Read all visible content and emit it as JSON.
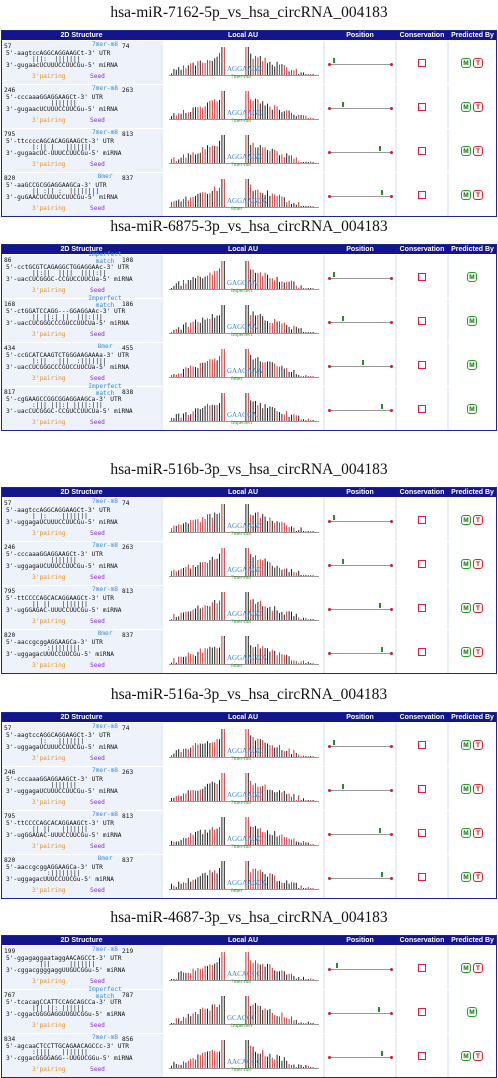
{
  "headers": [
    "2D Structure",
    "Local AU",
    "Position",
    "Conservation",
    "Predicted By"
  ],
  "sections": [
    {
      "title": "hsa-miR-7162-5p_vs_hsa_circRNA_004183",
      "rows": [
        {
          "start": "57",
          "end": "74",
          "type": "7mer-m8",
          "utr": "5'-aagtccAGGCAGGAAGCt-3' UTR",
          "bars": "|||:  ||||||| ",
          "mirna": "3'-gugaacUCUUUCCUUCGu-5' miRNA",
          "au": "AGGAAGC",
          "pos": 0.05,
          "pred": [
            "M",
            "T"
          ]
        },
        {
          "start": "246",
          "end": "263",
          "type": "7mer-m8",
          "utr": "5'-cccaaaGGAGGAAGCt-3' UTR",
          "bars": "     |||||||  ",
          "mirna": "3'-gugaacUCUUUCCUUCGu-5' miRNA",
          "au": "AGGAAGC",
          "pos": 0.2,
          "pred": [
            "M",
            "T"
          ]
        },
        {
          "start": "795",
          "end": "813",
          "type": "7mer-m8",
          "utr": "5'-ttccccAGCACAGGAAGCt-3' UTR",
          "bars": "|:|| |   ||||||| ",
          "mirna": "3'-gugaacUC-UUUCCUUCGu-5' miRNA",
          "au": "AGGAAGC",
          "pos": 0.85,
          "pred": [
            "M",
            "T"
          ]
        },
        {
          "start": "820",
          "end": "837",
          "type": "8mer",
          "utr": "5'-aaGCCGCGGAGGAAGCa-3' UTR",
          "bars": "|| :|| :  ||||||||",
          "mirna": "3'-guGAACUCUUUCCUUCGu-5' miRNA",
          "au": "AGGAAGCA",
          "pos": 0.88,
          "pred": [
            "M",
            "T"
          ]
        }
      ]
    },
    {
      "title": "hsa-miR-6875-3p_vs_hsa_circRNA_004183",
      "rows": [
        {
          "start": "86",
          "end": "108",
          "type": "Imperfect match",
          "utr": "5'-cctGCGTCAGAGGCTGGAGGAAc-3' UTR",
          "bars": "||:||  ||||  ||||:|| ",
          "mirna": "3'-uacCUCGGGC-CCGUCCUUCUa-5' miRNA",
          "au": "GAGGAA",
          "pos": 0.05,
          "pred": [
            "M"
          ]
        },
        {
          "start": "168",
          "end": "186",
          "type": "Imperfect match",
          "utr": "5'-ctGGATCCAGG---GGAGGAAc-3' UTR",
          "bars": "|| ||:| ||  |||:||| ",
          "mirna": "3'-uacCUCGGGCCCGUCCUUCUa-5' miRNA",
          "au": "GAGGAA",
          "pos": 0.2,
          "pred": [
            "M"
          ]
        },
        {
          "start": "434",
          "end": "455",
          "type": "8mer",
          "utr": "5'-ccGCATCAAGTCTGGGAAGAAAa-3' UTR",
          "bars": "|:||   |||  :|||||||",
          "mirna": "3'-uacCUCGGGCCCGUCCUUCUa-5' miRNA",
          "au": "GAAGAAA",
          "pos": 0.55,
          "pred": [
            "M"
          ]
        },
        {
          "start": "817",
          "end": "838",
          "type": "Imperfect match",
          "utr": "5'-cgGAAGCCGGCGGAGGAAGCa-3' UTR",
          "bars": ":||| |||:| ||||:|||",
          "mirna": "3'-uacCUCGGGC-CCGUCCUUCUa-5' miRNA",
          "au": "GAAGCA",
          "pos": 0.88,
          "pred": [
            "M"
          ]
        }
      ]
    },
    {
      "title": "hsa-miR-516b-3p_vs_hsa_circRNA_004183",
      "rows": [
        {
          "start": "57",
          "end": "74",
          "type": "7mer-m8",
          "utr": "5'-aagtccAGGCAGGAAGCt-3' UTR",
          "bars": "| |:    ||||||| ",
          "mirna": "3'-uggagaUCUUUCCUUCGu-5' miRNA",
          "au": "AGGAAGC",
          "pos": 0.05,
          "pred": [
            "M",
            "T"
          ]
        },
        {
          "start": "246",
          "end": "263",
          "type": "7mer-m8",
          "utr": "5'-cccaaaGGAGGAAGCt-3' UTR",
          "bars": "     |||||||  ",
          "mirna": "3'-uggagaUCUUUCCUUCGu-5' miRNA",
          "au": "AGGAAGC",
          "pos": 0.2,
          "pred": [
            "M",
            "T"
          ]
        },
        {
          "start": "795",
          "end": "813",
          "type": "7mer-m8",
          "utr": "5'-ttCCCCAGCACAGGAAGCt-3' UTR",
          "bars": "|| ||   ||||||| ",
          "mirna": "3'-ugGGAGAC-UUUCCUUCGu-5' miRNA",
          "au": "AGGAAGC",
          "pos": 0.85,
          "pred": [
            "M",
            "T"
          ]
        },
        {
          "start": "820",
          "end": "837",
          "type": "8mer",
          "utr": "5'-aaccgcggAGGAAGCa-3' UTR",
          "bars": "    :|||||||| ",
          "mirna": "3'-uggagacUUUCCUUCGu-5' miRNA",
          "au": "AGGAAGCA",
          "pos": 0.88,
          "pred": [
            "M",
            "T"
          ]
        }
      ]
    },
    {
      "title": "hsa-miR-516a-3p_vs_hsa_circRNA_004183",
      "rows": [
        {
          "start": "57",
          "end": "74",
          "type": "7mer-m8",
          "utr": "5'-aagtccAGGCAGGAAGCt-3' UTR",
          "bars": "  |:   ||||||| ",
          "mirna": "3'-uggagaUCUUUCCUUCGu-5' miRNA",
          "au": "AGGAAGC",
          "pos": 0.05,
          "pred": [
            "M",
            "T"
          ]
        },
        {
          "start": "246",
          "end": "263",
          "type": "7mer-m8",
          "utr": "5'-cccaaaGGAGGAAGCt-3' UTR",
          "bars": "     |||||||  ",
          "mirna": "3'-uggagaUCUUUCCUUCGu-5' miRNA",
          "au": "AGGAAGC",
          "pos": 0.2,
          "pred": [
            "M",
            "T"
          ]
        },
        {
          "start": "795",
          "end": "813",
          "type": "7mer-m8",
          "utr": "5'-ttCCCCAGCACAGGAAGCt-3' UTR",
          "bars": "|| ||   ||||||| ",
          "mirna": "3'-ugGGAGAC-UUUCCUUCGu-5' miRNA",
          "au": "AGGAAGC",
          "pos": 0.85,
          "pred": [
            "M",
            "T"
          ]
        },
        {
          "start": "820",
          "end": "837",
          "type": "8mer",
          "utr": "5'-aaccgcggAGGAAGCa-3' UTR",
          "bars": "    :|||||||| ",
          "mirna": "3'-uggagacUUUCCUUCGu-5' miRNA",
          "au": "AGGAAGCA",
          "pos": 0.88,
          "pred": [
            "M",
            "T"
          ]
        }
      ]
    },
    {
      "title": "hsa-miR-4687-3p_vs_hsa_circRNA_004183",
      "rows": [
        {
          "start": "199",
          "end": "219",
          "type": "7mer-m8",
          "utr": "5'-ggagaggaataggAACAGCCt-3' UTR",
          "bars": "  |||     ||||||| ",
          "mirna": "3'-cggacggggaggUUGUCGGu-5' miRNA",
          "au": "AACAGCC",
          "pos": 0.1,
          "pred": [
            "M",
            "T"
          ]
        },
        {
          "start": "767",
          "end": "787",
          "type": "Imperfect match",
          "utr": "5'-tcacagCCATTCCAGCAGCCa-3' UTR",
          "bars": "||| ||: ||||||  ",
          "mirna": "3'-cggacGGGGAGGUUGUCGGu-5' miRNA",
          "au": "GCAGCC",
          "pos": 0.82,
          "pred": [
            "M"
          ]
        },
        {
          "start": "834",
          "end": "856",
          "type": "7mer-m8",
          "utr": "5'-agcaaCTCCTTGCAGAACAGCCc-3' UTR",
          "bars": ":||||   ||||||| ",
          "mirna": "3'-cggacGGGGAGG--UUGUCGGu-5' miRNA",
          "au": "AACAGCC",
          "pos": 0.88,
          "pred": [
            "M",
            "T"
          ]
        }
      ]
    }
  ],
  "labels": {
    "pairing": "3'pairing",
    "seed": "Seed"
  }
}
